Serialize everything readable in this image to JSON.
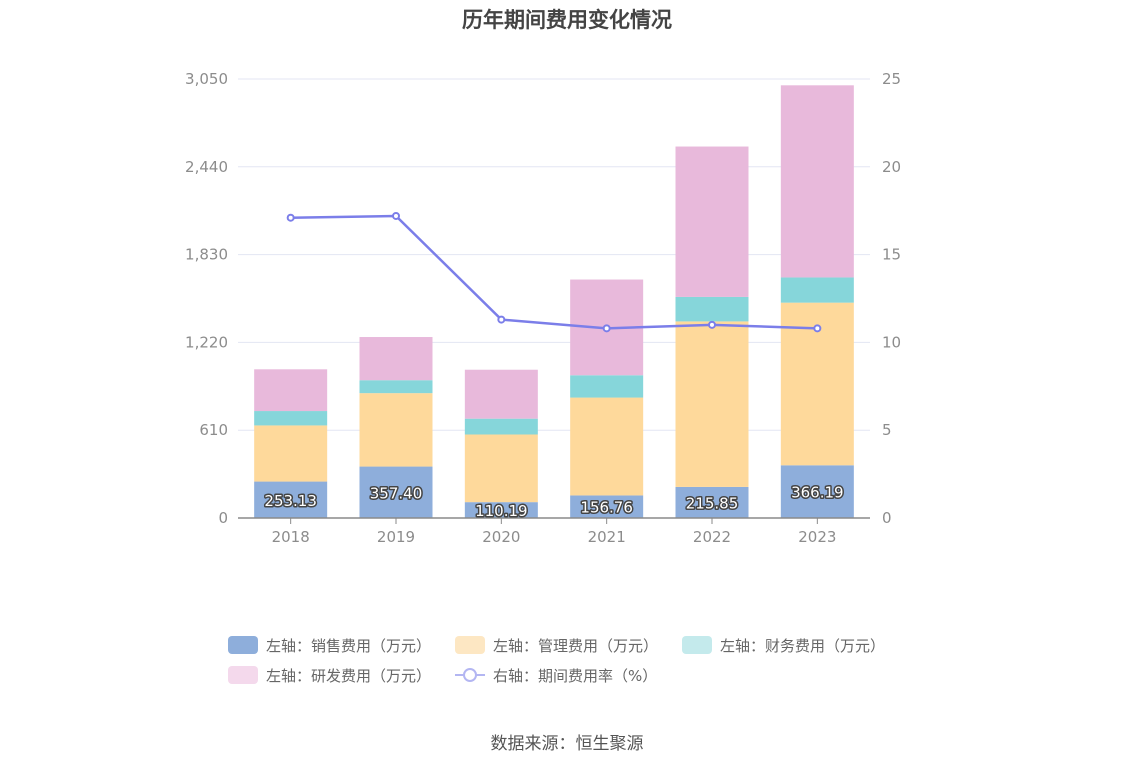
{
  "chart_data": {
    "type": "bar",
    "title": "历年期间费用变化情况",
    "categories": [
      "2018",
      "2019",
      "2020",
      "2021",
      "2022",
      "2023"
    ],
    "left_axis": {
      "min": 0,
      "max": 3050,
      "ticks": [
        "0",
        "610",
        "1,220",
        "1,830",
        "2,440",
        "3,050"
      ],
      "tick_values": [
        0,
        610,
        1220,
        1830,
        2440,
        3050
      ]
    },
    "right_axis": {
      "min": 0,
      "max": 25,
      "ticks": [
        "0",
        "5",
        "10",
        "15",
        "20",
        "25"
      ],
      "tick_values": [
        0,
        5,
        10,
        15,
        20,
        25
      ]
    },
    "grid": true,
    "stacked": true,
    "legend_position": "bottom",
    "series": [
      {
        "name": "左轴：销售费用（万元）",
        "axis": "left",
        "kind": "bar",
        "color": "#8eaedb",
        "values": [
          253.13,
          357.4,
          110.19,
          156.76,
          215.85,
          366.19
        ]
      },
      {
        "name": "左轴：管理费用（万元）",
        "axis": "left",
        "kind": "bar",
        "color": "#fed99b",
        "values": [
          390,
          510,
          470,
          680,
          1150,
          1130
        ]
      },
      {
        "name": "左轴：财务费用（万元）",
        "axis": "left",
        "kind": "bar",
        "color": "#86d6da",
        "values": [
          100,
          90,
          110,
          155,
          170,
          175
        ]
      },
      {
        "name": "左轴：研发费用（万元）",
        "axis": "left",
        "kind": "bar",
        "color": "#e8b9db",
        "values": [
          290,
          300,
          340,
          665,
          1045,
          1335
        ]
      },
      {
        "name": "右轴：期间费用率（%）",
        "axis": "right",
        "kind": "line",
        "color": "#7b7ee9",
        "values": [
          17.1,
          17.2,
          11.3,
          10.8,
          11.0,
          10.8
        ]
      }
    ],
    "data_labels": [
      "253.13",
      "357.40",
      "110.19",
      "156.76",
      "215.85",
      "366.19"
    ],
    "legend_colors": [
      "#8eaedb",
      "#fde7c3",
      "#c4eaec",
      "#f4d9ec",
      "#b3b6f2"
    ]
  },
  "source": "数据来源：恒生聚源"
}
